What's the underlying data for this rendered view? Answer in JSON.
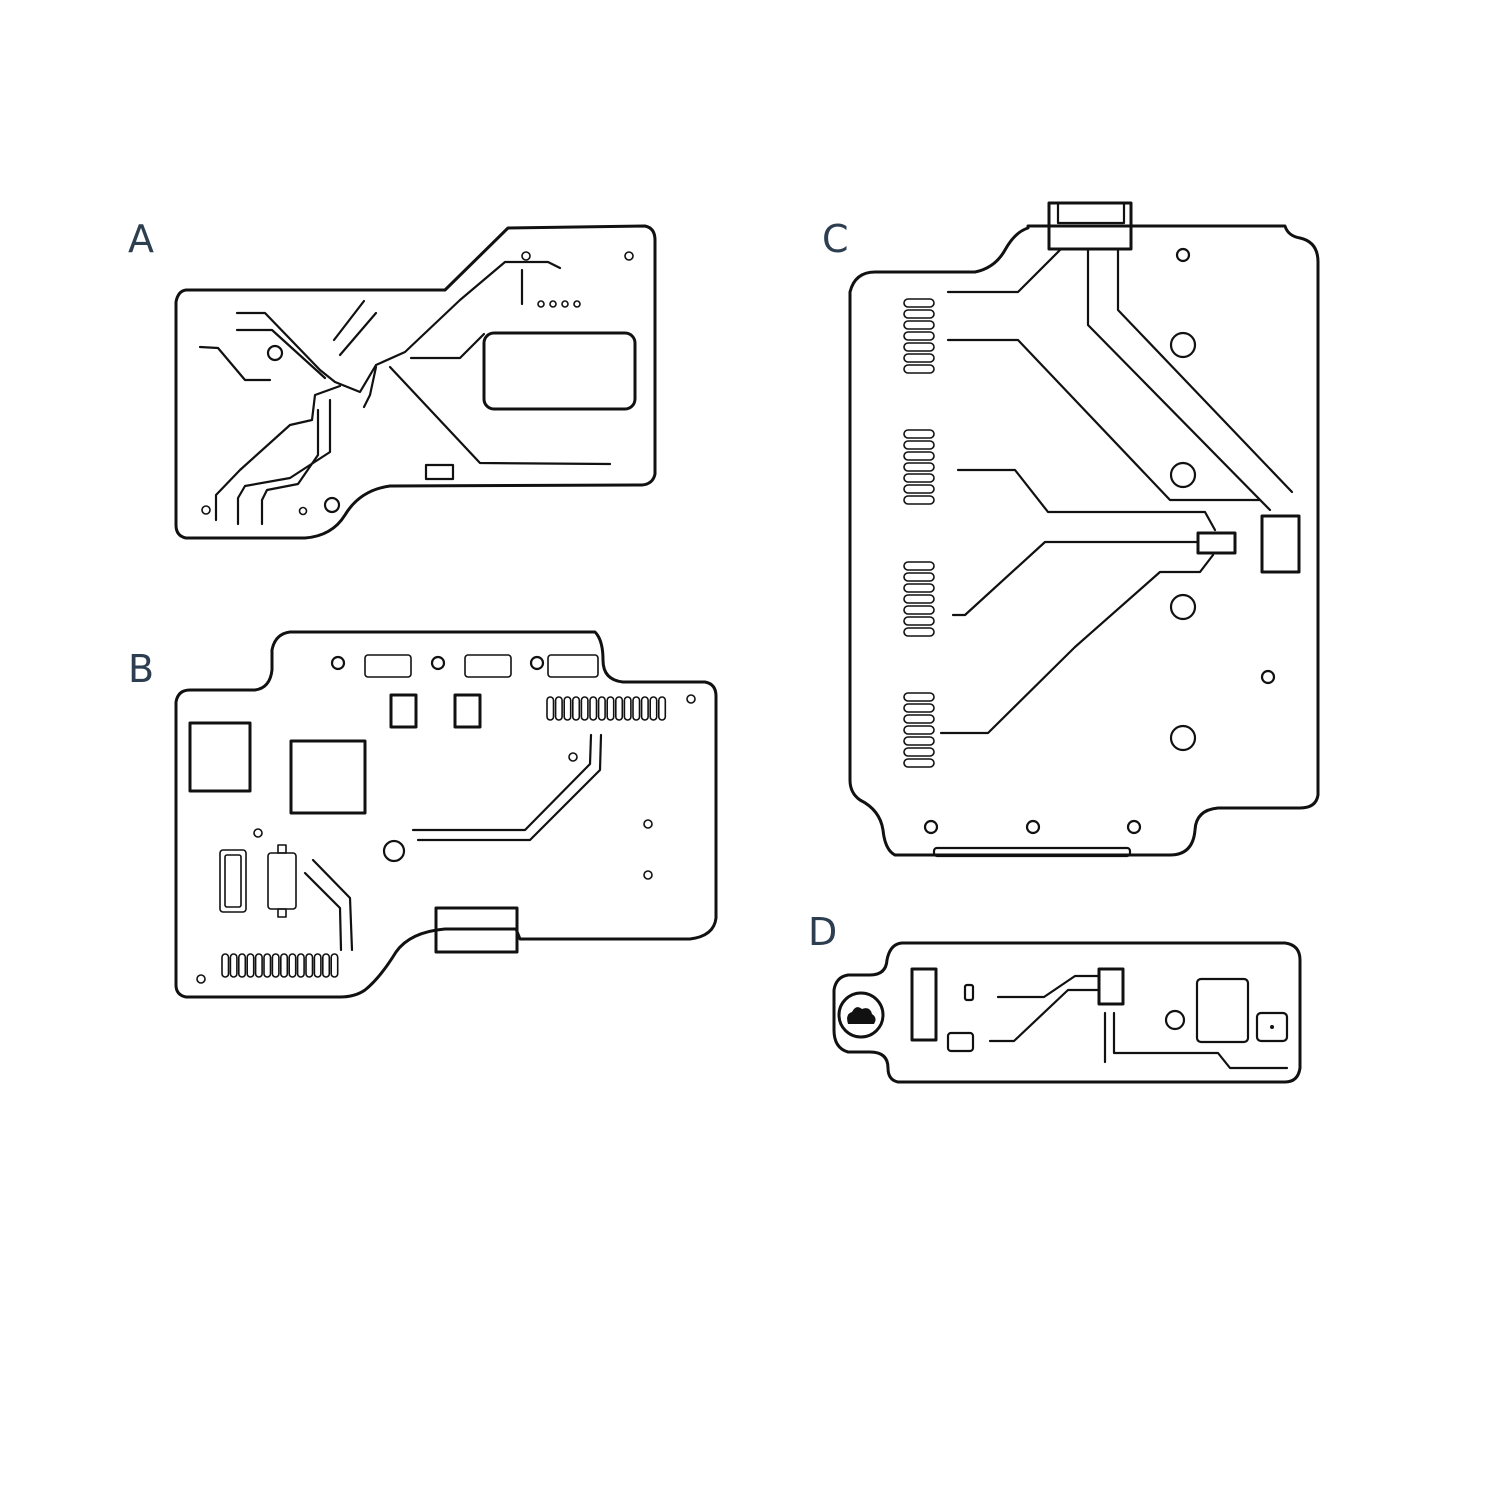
{
  "colors": {
    "blue_board": "#56b4e0",
    "peach_board": "#fbe0cc",
    "outline": "#111111",
    "label_text": "#2c3e50",
    "background": "#ffffff"
  },
  "panels": {
    "a": {
      "label": "A"
    },
    "b": {
      "label": "B"
    },
    "c": {
      "label": "C"
    },
    "d": {
      "label": "D"
    }
  }
}
